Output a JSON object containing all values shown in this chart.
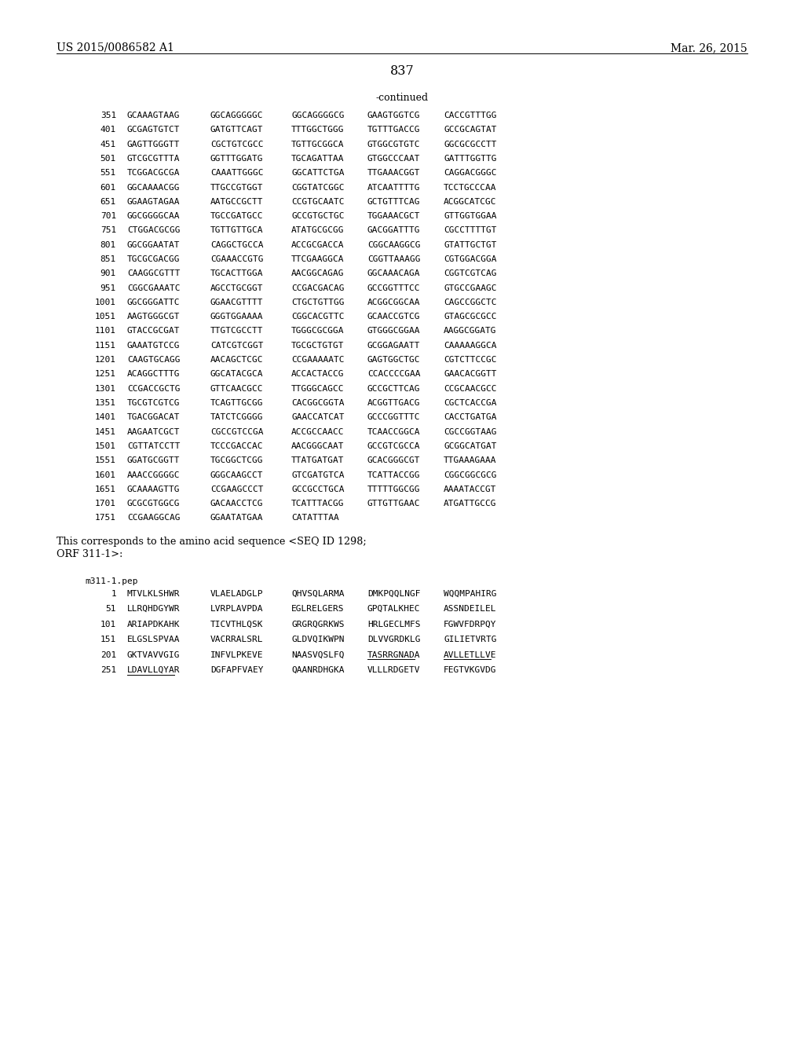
{
  "header_left": "US 2015/0086582 A1",
  "header_right": "Mar. 26, 2015",
  "page_number": "837",
  "continued_label": "-continued",
  "background_color": "#ffffff",
  "text_color": "#000000",
  "font_size_header": 10.0,
  "font_size_page": 11.5,
  "font_size_body": 8.2,
  "font_size_continued": 9.0,
  "sequence_lines": [
    [
      "351",
      "GCAAAGTAAG",
      "GGCAGGGGGC",
      "GGCAGGGGCG",
      "GAAGTGGTCG",
      "CACCGTTTGG"
    ],
    [
      "401",
      "GCGAGTGTCT",
      "GATGTTCAGT",
      "TTTGGCTGGG",
      "TGTTTGACCG",
      "GCCGCAGTAT"
    ],
    [
      "451",
      "GAGTTGGGTT",
      "CGCTGTCGCC",
      "TGTTGCGGCA",
      "GTGGCGTGTC",
      "GGCGCGCCTT"
    ],
    [
      "501",
      "GTCGCGTTTA",
      "GGTTTGGATG",
      "TGCAGATTAA",
      "GTGGCCCAAT",
      "GATTTGGTTG"
    ],
    [
      "551",
      "TCGGACGCGA",
      "CAAATTGGGC",
      "GGCATTCTGA",
      "TTGAAACGGT",
      "CAGGACGGGC"
    ],
    [
      "601",
      "GGCAAAACGG",
      "TTGCCGTGGT",
      "CGGTATCGGC",
      "ATCAATTTTG",
      "TCCTGCCCAA"
    ],
    [
      "651",
      "GGAAGTAGAA",
      "AATGCCGCTT",
      "CCGTGCAATC",
      "GCTGTTTCAG",
      "ACGGCATCGC"
    ],
    [
      "701",
      "GGCGGGGCAA",
      "TGCCGATGCC",
      "GCCGTGCTGC",
      "TGGAAACGCT",
      "GTTGGTGGAA"
    ],
    [
      "751",
      "CTGGACGCGG",
      "TGTTGTTGCA",
      "ATATGCGCGG",
      "GACGGATTTG",
      "CGCCTTTTGT"
    ],
    [
      "801",
      "GGCGGAATAT",
      "CAGGCTGCCA",
      "ACCGCGACCA",
      "CGGCAAGGCG",
      "GTATTGCTGT"
    ],
    [
      "851",
      "TGCGCGACGG",
      "CGAAACCGTG",
      "TTCGAAGGCA",
      "CGGTTAAAGG",
      "CGTGGACGGA"
    ],
    [
      "901",
      "CAAGGCGTTT",
      "TGCACTTGGA",
      "AACGGCAGAG",
      "GGCAAACAGA",
      "CGGTCGTCAG"
    ],
    [
      "951",
      "CGGCGAAATC",
      "AGCCTGCGGT",
      "CCGACGACAG",
      "GCCGGTTTCC",
      "GTGCCGAAGC"
    ],
    [
      "1001",
      "GGCGGGATTC",
      "GGAACGTTTT",
      "CTGCTGTTGG",
      "ACGGCGGCAA",
      "CAGCCGGCTC"
    ],
    [
      "1051",
      "AAGTGGGCGT",
      "GGGTGGAAAA",
      "CGGCACGTTC",
      "GCAACCGTCG",
      "GTAGCGCGCC"
    ],
    [
      "1101",
      "GTACCGCGAT",
      "TTGTCGCCTT",
      "TGGGCGCGGA",
      "GTGGGCGGAA",
      "AAGGCGGATG"
    ],
    [
      "1151",
      "GAAATGTCCG",
      "CATCGTCGGT",
      "TGCGCTGTGT",
      "GCGGAGAATT",
      "CAAAAAGGCA"
    ],
    [
      "1201",
      "CAAGTGCAGG",
      "AACAGCTCGC",
      "CCGAAAAATC",
      "GAGTGGCTGC",
      "CGTCTTCCGC"
    ],
    [
      "1251",
      "ACAGGCTTTG",
      "GGCATACGCA",
      "ACCACTACCG",
      "CCACCCCGAA",
      "GAACACGGTT"
    ],
    [
      "1301",
      "CCGACCGCTG",
      "GTTCAACGCC",
      "TTGGGCAGCC",
      "GCCGCTTCAG",
      "CCGCAACGCC"
    ],
    [
      "1351",
      "TGCGTCGTCG",
      "TCAGTTGCGG",
      "CACGGCGGTA",
      "ACGGTTGACG",
      "CGCTCACCGA"
    ],
    [
      "1401",
      "TGACGGACAT",
      "TATCTCGGGG",
      "GAACCATCAT",
      "GCCCGGTTTC",
      "CACCTGATGA"
    ],
    [
      "1451",
      "AAGAATCGCT",
      "CGCCGTCCGA",
      "ACCGCCAACC",
      "TCAACCGGCA",
      "CGCCGGTAAG"
    ],
    [
      "1501",
      "CGTTATCCTT",
      "TCCCGACCAC",
      "AACGGGCAAT",
      "GCCGTCGCCA",
      "GCGGCATGAT"
    ],
    [
      "1551",
      "GGATGCGGTT",
      "TGCGGCTCGG",
      "TTATGATGAT",
      "GCACGGGCGT",
      "TTGAAAGAAA"
    ],
    [
      "1601",
      "AAACCGGGGC",
      "GGGCAAGCCT",
      "GTCGATGTCA",
      "TCATTACCGG",
      "CGGCGGCGCG"
    ],
    [
      "1651",
      "GCAAAAGTTG",
      "CCGAAGCCCT",
      "GCCGCCTGCA",
      "TTTTTGGCGG",
      "AAAATACCGT"
    ],
    [
      "1701",
      "GCGCGTGGCG",
      "GACAACCTCG",
      "TCATTTACGG",
      "GTTGTTGAAC",
      "ATGATTGCCG"
    ],
    [
      "1751",
      "CCGAAGGCAG",
      "GGAATATGAA",
      "CATATTTAA"
    ]
  ],
  "paragraph_text1": "This corresponds to the amino acid sequence <SEQ ID 1298;",
  "paragraph_text2": "ORF 311-1>:",
  "pep_label": "m311-1.pep",
  "amino_lines": [
    [
      "1",
      "MTVLKLSHWR",
      "VLAELADGLP",
      "QHVSQLARMA",
      "DMKPQQLNGF",
      "WQQMPAHIRG"
    ],
    [
      "51",
      "LLRQHDGYWR",
      "LVRPLAVPDA",
      "EGLRELGERS",
      "GPQTALKHEC",
      "ASSNDEILEL"
    ],
    [
      "101",
      "ARIAPDKAHK",
      "TICVTHLQSK",
      "GRGRQGRKWS",
      "HRLGECLMFS",
      "FGWVFDRPQY"
    ],
    [
      "151",
      "ELGSLSPVAA",
      "VACRRALSRL",
      "GLDVQIKWPN",
      "DLVVGRDKLG",
      "GILIETVRTG"
    ],
    [
      "201",
      "GKTVAVVGIG",
      "INFVLPKEVE",
      "NAASVQSLFQ",
      "TASRRGNADA",
      "AVLLETLLVE"
    ],
    [
      "251",
      "LDAVLLQYAR",
      "DGFAPFVAEY",
      "QAANRDHGKA",
      "VLLLRDGETV",
      "FEGTVKGVDG"
    ]
  ]
}
